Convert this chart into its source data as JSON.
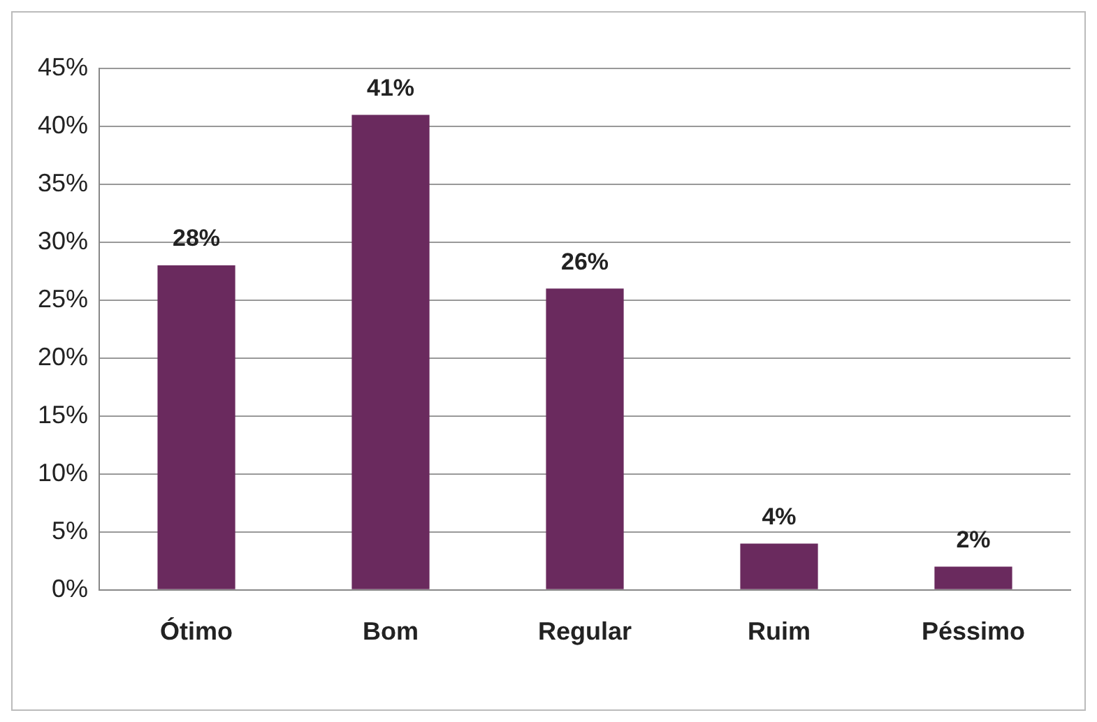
{
  "chart_data": {
    "type": "bar",
    "categories": [
      "Ótimo",
      "Bom",
      "Regular",
      "Ruim",
      "Péssimo"
    ],
    "values": [
      28,
      41,
      26,
      4,
      2
    ],
    "value_labels": [
      "28%",
      "41%",
      "26%",
      "4%",
      "2%"
    ],
    "color": "#6a2a5e",
    "ylim": [
      0,
      45
    ],
    "yticks": [
      {
        "value": 0,
        "label": "0%"
      },
      {
        "value": 5,
        "label": "5%"
      },
      {
        "value": 10,
        "label": "10%"
      },
      {
        "value": 15,
        "label": "15%"
      },
      {
        "value": 20,
        "label": "20%"
      },
      {
        "value": 25,
        "label": "25%"
      },
      {
        "value": 30,
        "label": "30%"
      },
      {
        "value": 35,
        "label": "35%"
      },
      {
        "value": 40,
        "label": "40%"
      },
      {
        "value": 45,
        "label": "45%"
      }
    ],
    "grid": "y",
    "legend": false
  }
}
